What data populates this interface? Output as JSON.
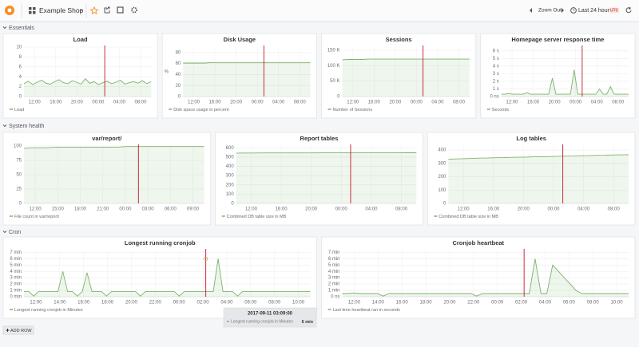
{
  "header": {
    "dashboard": "Example Shop",
    "zoom_out": "Zoom Out",
    "time_range": "Last 24 hours",
    "tz": "UTC"
  },
  "rows": [
    {
      "title": "Essentials",
      "panels": [
        {
          "title": "Load",
          "ylim": [
            0,
            10
          ],
          "yticks": [
            0,
            2,
            4,
            6,
            8,
            10
          ],
          "xticks": [
            "12:00",
            "16:00",
            "20:00",
            "00:00",
            "04:00",
            "08:00"
          ],
          "legend": "Load",
          "color": "#7eb26d",
          "values": [
            2.6,
            3.1,
            2.4,
            2.9,
            3.3,
            2.7,
            2.5,
            3.0,
            3.4,
            2.8,
            2.6,
            3.2,
            2.9,
            2.5,
            3.6,
            2.7,
            3.0,
            2.4,
            2.8,
            3.1,
            2.6,
            2.9,
            3.3,
            2.5,
            2.8,
            3.0,
            2.7,
            3.2,
            2.6,
            3.0
          ]
        },
        {
          "title": "Disk Usage",
          "ylabel": "%",
          "ylim": [
            0,
            90
          ],
          "yticks": [
            0,
            20,
            40,
            60,
            80
          ],
          "xticks": [
            "12:00",
            "16:00",
            "20:00",
            "00:00",
            "04:00",
            "08:00"
          ],
          "legend": "Disk space usage in percent",
          "color": "#7eb26d",
          "values": [
            61,
            61,
            61,
            61,
            61,
            62,
            62,
            62,
            62,
            62,
            62,
            62,
            62,
            62,
            62,
            62,
            62,
            62,
            62,
            62,
            62,
            62,
            62,
            62
          ]
        },
        {
          "title": "Sessions",
          "ylim": [
            0,
            160000
          ],
          "yticks": [
            0,
            {
              "value": 50000,
              "label": "50 K"
            },
            {
              "value": 100000,
              "label": "100 K"
            },
            {
              "value": 150000,
              "label": "150 K"
            }
          ],
          "xticks": [
            "12:00",
            "16:00",
            "20:00",
            "00:00",
            "04:00",
            "08:00"
          ],
          "legend": "Number of Sessions",
          "color": "#7eb26d",
          "values": [
            119000,
            120000,
            120000,
            120000,
            121000,
            121000,
            121000,
            121000,
            121000,
            121000,
            121000,
            121000,
            121000,
            121000,
            121000,
            121000,
            121000,
            121000,
            121000,
            121000
          ]
        },
        {
          "title": "Homepage server response time",
          "ylim": [
            0,
            6.5
          ],
          "yticks": [
            {
              "value": 0,
              "label": "0 ns"
            },
            {
              "value": 1,
              "label": "1 s"
            },
            {
              "value": 2,
              "label": "2 s"
            },
            {
              "value": 3,
              "label": "3 s"
            },
            {
              "value": 4,
              "label": "4 s"
            },
            {
              "value": 5,
              "label": "5 s"
            },
            {
              "value": 6,
              "label": "6 s"
            }
          ],
          "xticks": [
            "12:00",
            "16:00",
            "20:00",
            "00:00",
            "04:00",
            "08:00"
          ],
          "legend": "Seconds",
          "color": "#7eb26d",
          "values": [
            0.3,
            0.3,
            0.4,
            0.3,
            0.3,
            0.3,
            0.3,
            0.5,
            0.3,
            0.3,
            0.3,
            0.3,
            0.3,
            0.3,
            2.4,
            0.3,
            0.3,
            0.3,
            0.3,
            0.3,
            3.5,
            0.3,
            0.3,
            0.3,
            0.3,
            0.3,
            0.3,
            1.0,
            0.3,
            0.3,
            1.3,
            0.3,
            0.3,
            0.3,
            0.3,
            0.3
          ]
        }
      ]
    },
    {
      "title": "System health",
      "panels": [
        {
          "title": "var/report/",
          "ylim": [
            0,
            100
          ],
          "yticks": [
            0,
            25,
            50,
            75,
            100
          ],
          "xticks": [
            "12:00",
            "15:00",
            "18:00",
            "21:00",
            "00:00",
            "03:00",
            "06:00",
            "09:00"
          ],
          "legend": "File count in var/report/",
          "color": "#7eb26d",
          "values": [
            96,
            97,
            97,
            97,
            98,
            98,
            98,
            98,
            98,
            98,
            98,
            98,
            98,
            99,
            99,
            99,
            99,
            99,
            99,
            99,
            99,
            99,
            99,
            99
          ]
        },
        {
          "title": "Report tables",
          "ylim": [
            0,
            620
          ],
          "yticks": [
            0,
            100,
            200,
            300,
            400,
            500,
            600
          ],
          "xticks": [
            "12:00",
            "16:00",
            "20:00",
            "00:00",
            "04:00",
            "08:00"
          ],
          "legend": "Combined DB table size in MB",
          "color": "#7eb26d",
          "values": [
            543,
            544,
            544,
            545,
            545,
            545,
            545,
            545,
            545,
            546,
            546,
            546,
            546,
            546,
            546,
            546,
            546,
            546,
            547,
            547
          ]
        },
        {
          "title": "Log tables",
          "ylim": [
            0,
            430
          ],
          "yticks": [
            0,
            100,
            200,
            300,
            400
          ],
          "xticks": [
            "12:00",
            "16:00",
            "20:00",
            "00:00",
            "04:00",
            "08:00"
          ],
          "legend": "Combined DB table size in MB",
          "color": "#7eb26d",
          "values": [
            330,
            333,
            335,
            337,
            339,
            340,
            342,
            343,
            345,
            346,
            347,
            349,
            350,
            351,
            353,
            354,
            355,
            357,
            358,
            360,
            361,
            363,
            364,
            365
          ]
        }
      ]
    },
    {
      "title": "Cron",
      "panels": [
        {
          "title": "Longest running cronjob",
          "ylim": [
            0,
            7.3
          ],
          "yticks": [
            {
              "value": 0,
              "label": "0 min"
            },
            {
              "value": 1,
              "label": "1 min"
            },
            {
              "value": 2,
              "label": "2 min"
            },
            {
              "value": 3,
              "label": "3 min"
            },
            {
              "value": 4,
              "label": "4 min"
            },
            {
              "value": 5,
              "label": "5 min"
            },
            {
              "value": 6,
              "label": "6 min"
            },
            {
              "value": 7,
              "label": "7 min"
            }
          ],
          "xticks": [
            "12:00",
            "14:00",
            "16:00",
            "18:00",
            "20:00",
            "22:00",
            "00:00",
            "02:00",
            "04:00",
            "06:00",
            "08:00",
            "10:00"
          ],
          "legend": "Longest running cronjob in Minutes",
          "color": "#7eb26d",
          "values": [
            0.8,
            0.8,
            0.1,
            0.8,
            0.8,
            0.8,
            0.8,
            0.8,
            4.0,
            0.8,
            0.8,
            0.1,
            0.8,
            3.8,
            0.8,
            0.8,
            0.8,
            0.1,
            0.8,
            0.8,
            0.8,
            0.8,
            0.8,
            0.8,
            0.1,
            0.8,
            0.8,
            0.8,
            0.8,
            0.8,
            0.8,
            0.8,
            0.1,
            0.8,
            0.8,
            0.8,
            0.8,
            0.8,
            0.8,
            0.8,
            6.0,
            0.8,
            0.8,
            0.8,
            0.1,
            0.8,
            0.8,
            0.8,
            0.8,
            0.8,
            0.8,
            0.8,
            0.8,
            0.8,
            0.8,
            0.8,
            0.8,
            0.8,
            0.8,
            0.8
          ]
        },
        {
          "title": "Cronjob heartbeat",
          "ylim": [
            0,
            7.3
          ],
          "yticks": [
            {
              "value": 0,
              "label": "0 ns"
            },
            {
              "value": 1,
              "label": "1 min"
            },
            {
              "value": 2,
              "label": "2 min"
            },
            {
              "value": 3,
              "label": "3 min"
            },
            {
              "value": 4,
              "label": "4 min"
            },
            {
              "value": 5,
              "label": "5 min"
            },
            {
              "value": 6,
              "label": "6 min"
            },
            {
              "value": 7,
              "label": "7 min"
            }
          ],
          "xticks": [
            "12:00",
            "14:00",
            "16:00",
            "18:00",
            "20:00",
            "22:00",
            "00:00",
            "02:00",
            "04:00",
            "06:00",
            "08:00",
            "10:00"
          ],
          "legend": "Last time heartbeat ran in seconds",
          "color": "#7eb26d",
          "values": [
            0.5,
            0.5,
            0.6,
            0.5,
            0.5,
            0.5,
            0.5,
            0.1,
            0.5,
            0.5,
            0.5,
            0.5,
            0.5,
            0.5,
            0.5,
            0.5,
            0.5,
            0.5,
            0.5,
            0.5,
            0.5,
            0.5,
            0.5,
            0.1,
            0.5,
            0.5,
            0.5,
            0.5,
            0.5,
            0.5,
            0.5,
            0.5,
            0.5,
            6.0,
            0.5,
            0.5,
            5.0,
            4.0,
            3.0,
            2.0,
            1.0,
            0.5,
            0.5,
            0.5,
            0.5,
            0.5,
            0.5,
            0.5,
            0.5,
            0.5
          ]
        }
      ]
    }
  ],
  "tooltip": {
    "time": "2017-09-11 03:09:00",
    "series": "Longest running cronjob in Minutes",
    "value": "6 min"
  },
  "add_row": "ADD ROW"
}
